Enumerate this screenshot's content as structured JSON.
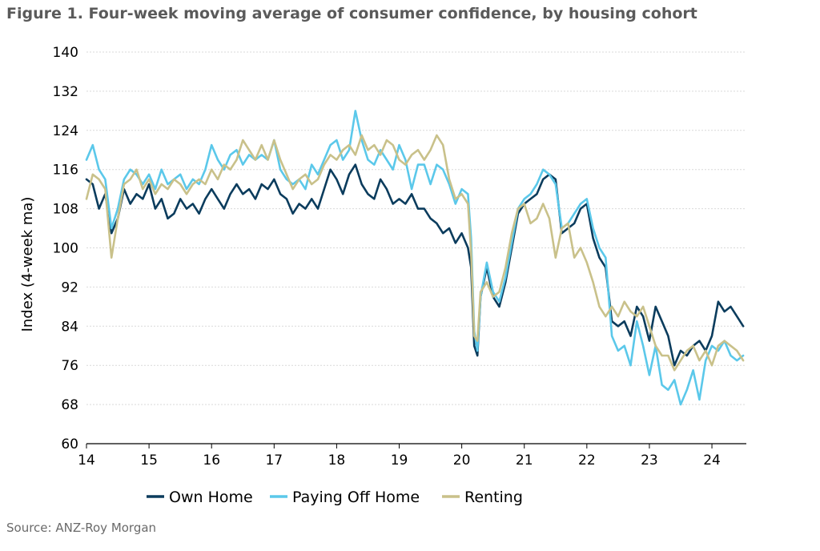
{
  "figure": {
    "title": "Figure 1. Four-week moving average of consumer confidence, by housing cohort",
    "source": "Source: ANZ-Roy Morgan"
  },
  "chart_data": {
    "type": "line",
    "title": "Figure 1. Four-week moving average of consumer confidence, by housing cohort",
    "xlabel": "",
    "ylabel": "Index (4-week ma)",
    "xlim": [
      14,
      24.55
    ],
    "ylim": [
      60,
      140
    ],
    "xticks": [
      14,
      15,
      16,
      17,
      18,
      19,
      20,
      21,
      22,
      23,
      24
    ],
    "xtick_labels": [
      "14",
      "15",
      "16",
      "17",
      "18",
      "19",
      "20",
      "21",
      "22",
      "23",
      "24"
    ],
    "yticks": [
      60,
      68,
      76,
      84,
      92,
      100,
      108,
      116,
      124,
      132,
      140
    ],
    "ytick_labels": [
      "60",
      "68",
      "76",
      "84",
      "92",
      "100",
      "108",
      "116",
      "124",
      "132",
      "140"
    ],
    "grid": true,
    "legend_position": "bottom",
    "series": [
      {
        "name": "Own Home",
        "color": "#0b3c5d",
        "x": [
          14.0,
          14.1,
          14.2,
          14.3,
          14.4,
          14.5,
          14.6,
          14.7,
          14.8,
          14.9,
          15.0,
          15.1,
          15.2,
          15.3,
          15.4,
          15.5,
          15.6,
          15.7,
          15.8,
          15.9,
          16.0,
          16.1,
          16.2,
          16.3,
          16.4,
          16.5,
          16.6,
          16.7,
          16.8,
          16.9,
          17.0,
          17.1,
          17.2,
          17.3,
          17.4,
          17.5,
          17.6,
          17.7,
          17.8,
          17.9,
          18.0,
          18.1,
          18.2,
          18.3,
          18.4,
          18.5,
          18.6,
          18.7,
          18.8,
          18.9,
          19.0,
          19.1,
          19.2,
          19.3,
          19.4,
          19.5,
          19.6,
          19.7,
          19.8,
          19.9,
          20.0,
          20.1,
          20.15,
          20.2,
          20.25,
          20.3,
          20.4,
          20.5,
          20.6,
          20.7,
          20.8,
          20.9,
          21.0,
          21.1,
          21.2,
          21.3,
          21.4,
          21.5,
          21.6,
          21.7,
          21.8,
          21.9,
          22.0,
          22.1,
          22.2,
          22.3,
          22.4,
          22.5,
          22.6,
          22.7,
          22.8,
          22.9,
          23.0,
          23.1,
          23.2,
          23.3,
          23.4,
          23.5,
          23.6,
          23.7,
          23.8,
          23.9,
          24.0,
          24.1,
          24.2,
          24.3,
          24.4,
          24.5
        ],
        "values": [
          114,
          113,
          108,
          111,
          103,
          106,
          112,
          109,
          111,
          110,
          113,
          108,
          110,
          106,
          107,
          110,
          108,
          109,
          107,
          110,
          112,
          110,
          108,
          111,
          113,
          111,
          112,
          110,
          113,
          112,
          114,
          111,
          110,
          107,
          109,
          108,
          110,
          108,
          112,
          116,
          114,
          111,
          115,
          117,
          113,
          111,
          110,
          114,
          112,
          109,
          110,
          109,
          111,
          108,
          108,
          106,
          105,
          103,
          104,
          101,
          103,
          100,
          96,
          80,
          78,
          90,
          96,
          90,
          88,
          93,
          100,
          107,
          109,
          110,
          111,
          114,
          115,
          114,
          103,
          104,
          105,
          108,
          109,
          102,
          98,
          96,
          85,
          84,
          85,
          82,
          88,
          86,
          81,
          88,
          85,
          82,
          76,
          79,
          78,
          80,
          81,
          79,
          82,
          89,
          87,
          88,
          86,
          84
        ]
      },
      {
        "name": "Paying Off Home",
        "color": "#5bc8ea",
        "x": [
          14.0,
          14.1,
          14.2,
          14.3,
          14.4,
          14.5,
          14.6,
          14.7,
          14.8,
          14.9,
          15.0,
          15.1,
          15.2,
          15.3,
          15.4,
          15.5,
          15.6,
          15.7,
          15.8,
          15.9,
          16.0,
          16.1,
          16.2,
          16.3,
          16.4,
          16.5,
          16.6,
          16.7,
          16.8,
          16.9,
          17.0,
          17.1,
          17.2,
          17.3,
          17.4,
          17.5,
          17.6,
          17.7,
          17.8,
          17.9,
          18.0,
          18.1,
          18.2,
          18.3,
          18.4,
          18.5,
          18.6,
          18.7,
          18.8,
          18.9,
          19.0,
          19.1,
          19.2,
          19.3,
          19.4,
          19.5,
          19.6,
          19.7,
          19.8,
          19.9,
          20.0,
          20.1,
          20.15,
          20.2,
          20.25,
          20.3,
          20.4,
          20.5,
          20.6,
          20.7,
          20.8,
          20.9,
          21.0,
          21.1,
          21.2,
          21.3,
          21.4,
          21.5,
          21.6,
          21.7,
          21.8,
          21.9,
          22.0,
          22.1,
          22.2,
          22.3,
          22.4,
          22.5,
          22.6,
          22.7,
          22.8,
          22.9,
          23.0,
          23.1,
          23.2,
          23.3,
          23.4,
          23.5,
          23.6,
          23.7,
          23.8,
          23.9,
          24.0,
          24.1,
          24.2,
          24.3,
          24.4,
          24.5
        ],
        "values": [
          118,
          121,
          116,
          114,
          104,
          108,
          114,
          116,
          115,
          113,
          115,
          112,
          116,
          113,
          114,
          115,
          112,
          114,
          113,
          116,
          121,
          118,
          116,
          119,
          120,
          117,
          119,
          118,
          119,
          118,
          122,
          116,
          114,
          113,
          114,
          112,
          117,
          115,
          118,
          121,
          122,
          118,
          120,
          128,
          122,
          118,
          117,
          120,
          118,
          116,
          121,
          118,
          112,
          117,
          117,
          113,
          117,
          116,
          113,
          109,
          112,
          111,
          102,
          83,
          79,
          90,
          97,
          91,
          89,
          94,
          101,
          108,
          110,
          111,
          113,
          116,
          115,
          113,
          104,
          105,
          107,
          109,
          110,
          104,
          100,
          98,
          82,
          79,
          80,
          76,
          85,
          80,
          74,
          80,
          72,
          71,
          73,
          68,
          71,
          75,
          69,
          77,
          80,
          79,
          81,
          78,
          77,
          78
        ]
      },
      {
        "name": "Renting",
        "color": "#c9c18a",
        "x": [
          14.0,
          14.1,
          14.2,
          14.3,
          14.4,
          14.5,
          14.6,
          14.7,
          14.8,
          14.9,
          15.0,
          15.1,
          15.2,
          15.3,
          15.4,
          15.5,
          15.6,
          15.7,
          15.8,
          15.9,
          16.0,
          16.1,
          16.2,
          16.3,
          16.4,
          16.5,
          16.6,
          16.7,
          16.8,
          16.9,
          17.0,
          17.1,
          17.2,
          17.3,
          17.4,
          17.5,
          17.6,
          17.7,
          17.8,
          17.9,
          18.0,
          18.1,
          18.2,
          18.3,
          18.4,
          18.5,
          18.6,
          18.7,
          18.8,
          18.9,
          19.0,
          19.1,
          19.2,
          19.3,
          19.4,
          19.5,
          19.6,
          19.7,
          19.8,
          19.9,
          20.0,
          20.1,
          20.15,
          20.2,
          20.25,
          20.3,
          20.4,
          20.5,
          20.6,
          20.7,
          20.8,
          20.9,
          21.0,
          21.1,
          21.2,
          21.3,
          21.4,
          21.5,
          21.6,
          21.7,
          21.8,
          21.9,
          22.0,
          22.1,
          22.2,
          22.3,
          22.4,
          22.5,
          22.6,
          22.7,
          22.8,
          22.9,
          23.0,
          23.1,
          23.2,
          23.3,
          23.4,
          23.5,
          23.6,
          23.7,
          23.8,
          23.9,
          24.0,
          24.1,
          24.2,
          24.3,
          24.4,
          24.5
        ],
        "values": [
          110,
          115,
          114,
          112,
          98,
          106,
          113,
          114,
          116,
          112,
          114,
          111,
          113,
          112,
          114,
          113,
          111,
          113,
          114,
          113,
          116,
          114,
          117,
          116,
          118,
          122,
          120,
          118,
          121,
          118,
          122,
          118,
          115,
          112,
          114,
          115,
          113,
          114,
          117,
          119,
          118,
          120,
          121,
          119,
          123,
          120,
          121,
          119,
          122,
          121,
          118,
          117,
          119,
          120,
          118,
          120,
          123,
          121,
          114,
          110,
          111,
          109,
          99,
          82,
          81,
          91,
          93,
          90,
          91,
          96,
          103,
          108,
          109,
          105,
          106,
          109,
          106,
          98,
          104,
          105,
          98,
          100,
          97,
          93,
          88,
          86,
          88,
          86,
          89,
          87,
          86,
          88,
          84,
          80,
          78,
          78,
          75,
          77,
          79,
          80,
          77,
          79,
          76,
          80,
          81,
          80,
          79,
          77
        ]
      }
    ]
  }
}
